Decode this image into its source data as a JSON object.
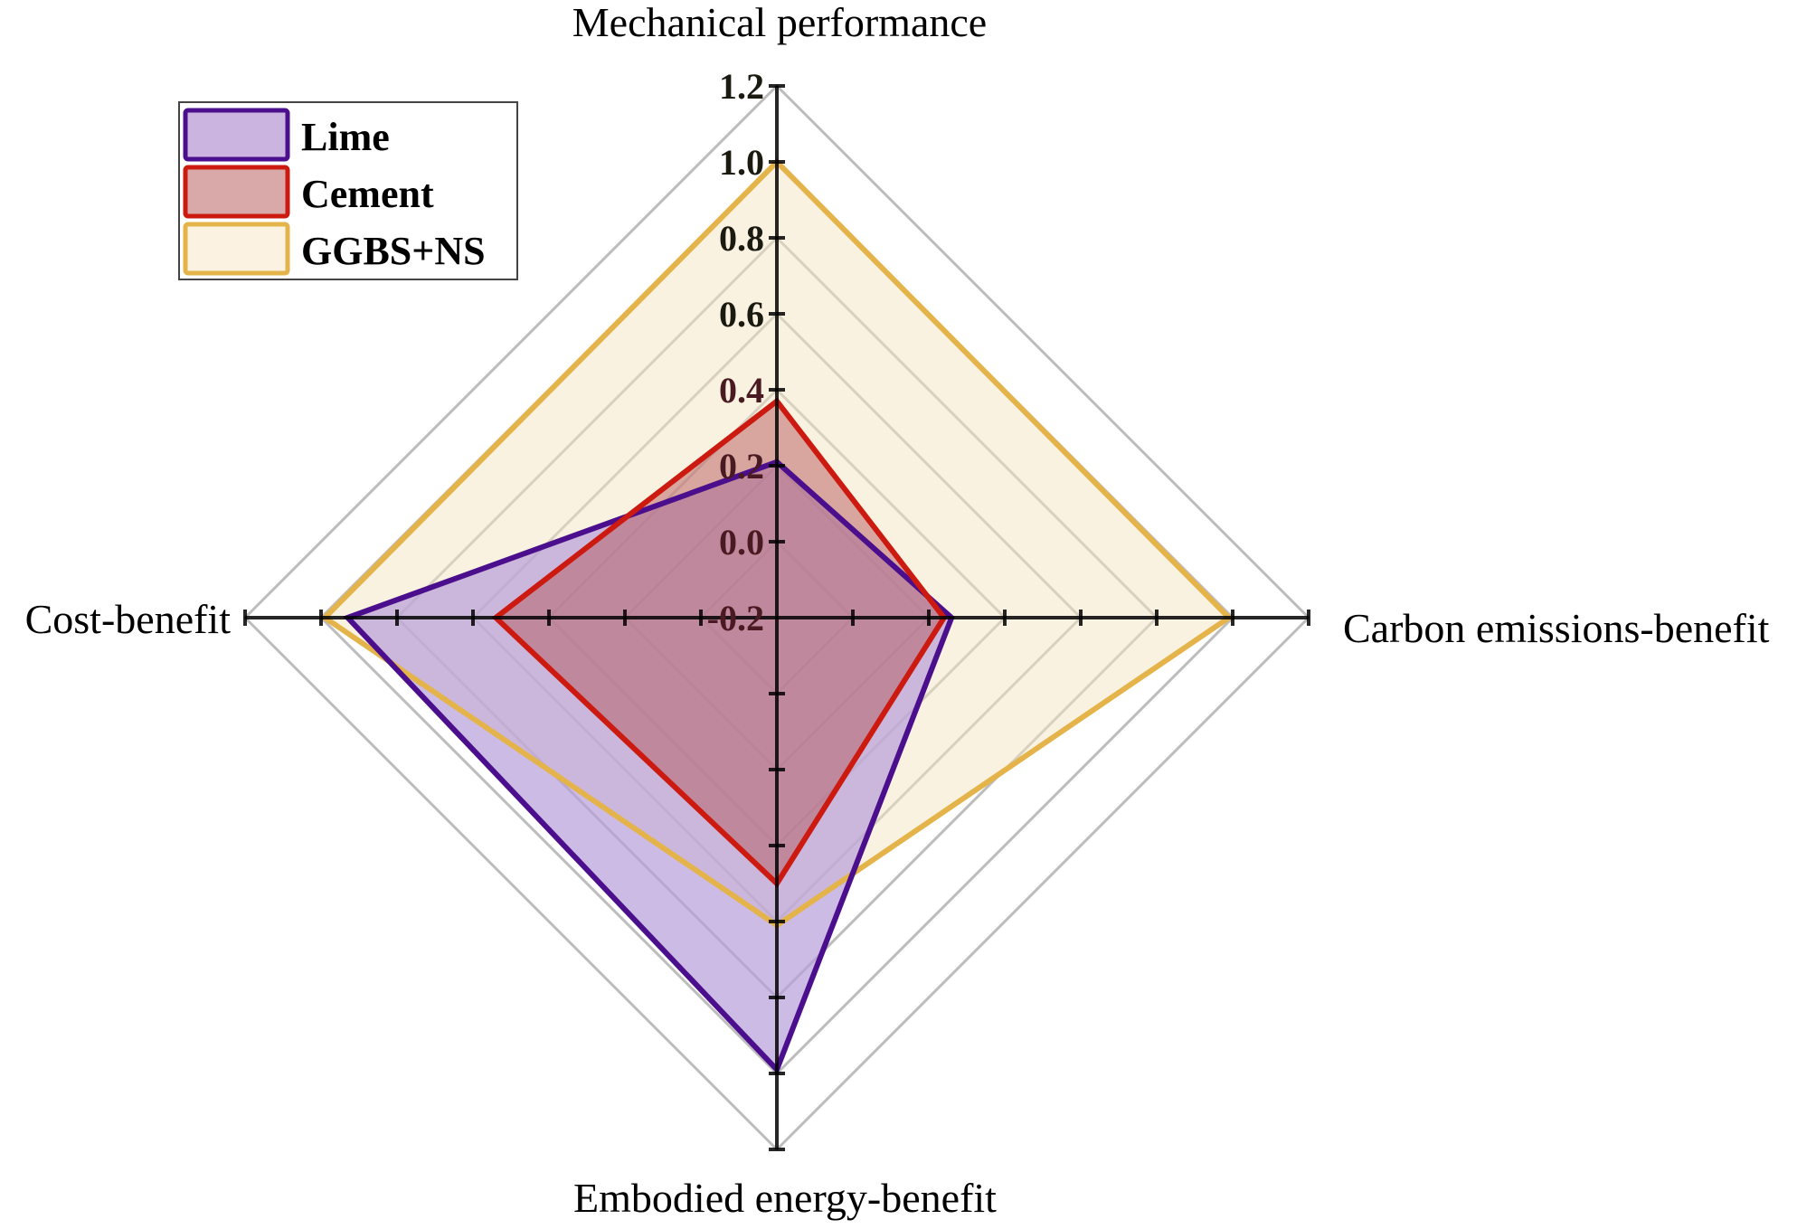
{
  "chart_data": {
    "type": "radar",
    "title": "",
    "axes": [
      "Mechanical performance",
      "Carbon emissions-benefit",
      "Embodied energy-benefit",
      "Cost-benefit"
    ],
    "radial_range": [
      -0.2,
      1.2
    ],
    "radial_ticks": [
      "1.2",
      "1.0",
      "0.8",
      "0.6",
      "0.4",
      "0.2",
      "0.0",
      "-0.2"
    ],
    "grid": true,
    "legend_position": "top-left",
    "series": [
      {
        "name": "Lime",
        "values": [
          0.21,
          0.26,
          0.99,
          0.93
        ],
        "stroke": "#4B0E8C",
        "fill": "#B79ED8",
        "fill_opacity": 0.7
      },
      {
        "name": "Cement",
        "values": [
          0.37,
          0.24,
          0.5,
          0.54
        ],
        "stroke": "#CC1A10",
        "fill": "#B55A5E",
        "fill_opacity": 0.5
      },
      {
        "name": "GGBS+NS",
        "values": [
          1.0,
          0.99,
          0.61,
          0.99
        ],
        "stroke": "#E4B44A",
        "fill": "#F6E6C3",
        "fill_opacity": 0.5
      }
    ]
  },
  "legend": {
    "items": [
      {
        "label": "Lime"
      },
      {
        "label": "Cement"
      },
      {
        "label": "GGBS+NS"
      }
    ]
  },
  "axis_titles": {
    "top": "Mechanical performance",
    "right": "Carbon emissions-benefit",
    "bottom": "Embodied energy-benefit",
    "left": "Cost-benefit"
  }
}
